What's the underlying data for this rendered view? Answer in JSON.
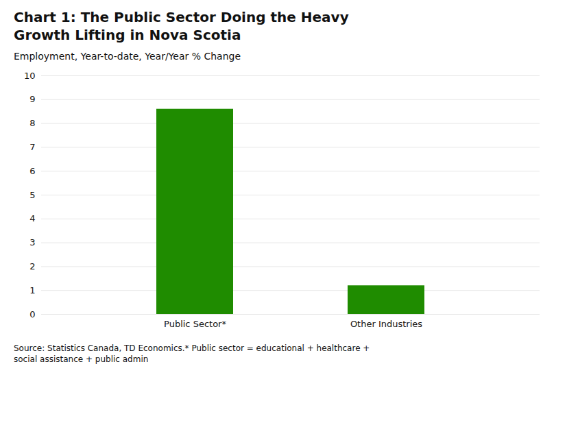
{
  "chart_data": {
    "type": "bar",
    "title": "Chart 1: The Public Sector Doing the Heavy\nGrowth Lifting in Nova Scotia",
    "subtitle": "Employment, Year-to-date, Year/Year % Change",
    "caption": "Source: Statistics Canada, TD Economics.* Public sector = educational + healthcare +\nsocial assistance + public admin",
    "categories": [
      "Public Sector*",
      "Other Industries"
    ],
    "values": [
      8.6,
      1.2
    ],
    "color": "#1f8c00",
    "ylim": [
      0,
      10
    ],
    "yticks": [
      0,
      1,
      2,
      3,
      4,
      5,
      6,
      7,
      8,
      9,
      10
    ],
    "grid": true
  }
}
